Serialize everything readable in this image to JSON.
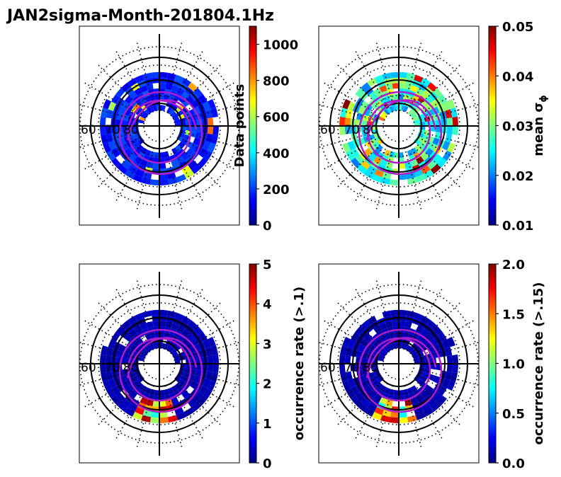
{
  "title": "JAN2sigma-Month-201804.1Hz",
  "colors": {
    "grid": "#000000",
    "oval": "#b01cc8",
    "jet": [
      "#00007f",
      "#0000ff",
      "#007fff",
      "#00ffff",
      "#7fff7f",
      "#ffff00",
      "#ff7f00",
      "#ff0000",
      "#7f0000"
    ]
  },
  "chart_data": [
    {
      "type": "heatmap",
      "projection": "polar",
      "panel": "top-left",
      "colorbar": {
        "label": "Data points",
        "label_side": "left",
        "vmin": 0,
        "vmax": 1100,
        "ticks": [
          "0",
          "200",
          "400",
          "600",
          "800",
          "1000"
        ],
        "tick_values": [
          0,
          200,
          400,
          600,
          800,
          1000
        ]
      },
      "lat_labels": [
        "60",
        "70",
        "80"
      ],
      "typical_value_fraction": 0.15
    },
    {
      "type": "heatmap",
      "projection": "polar",
      "panel": "top-right",
      "colorbar": {
        "label": "mean σ",
        "label_sub": "ϕ",
        "label_side": "right",
        "vmin": 0.01,
        "vmax": 0.05,
        "ticks": [
          "0.01",
          "0.02",
          "0.03",
          "0.04",
          "0.05"
        ],
        "tick_values": [
          0.01,
          0.02,
          0.03,
          0.04,
          0.05
        ]
      },
      "lat_labels": [
        "60",
        "70",
        "80"
      ],
      "typical_value_fraction": 0.4
    },
    {
      "type": "heatmap",
      "projection": "polar",
      "panel": "bottom-left",
      "colorbar": {
        "label": "occurrence rate (>.1)",
        "label_side": "right",
        "vmin": 0,
        "vmax": 5,
        "ticks": [
          "0",
          "1",
          "2",
          "3",
          "4",
          "5"
        ],
        "tick_values": [
          0,
          1,
          2,
          3,
          4,
          5
        ]
      },
      "lat_labels": [
        "60",
        "70",
        "80"
      ],
      "typical_value_fraction": 0.05
    },
    {
      "type": "heatmap",
      "projection": "polar",
      "panel": "bottom-right",
      "colorbar": {
        "label": "occurrence rate (>.15)",
        "label_side": "right",
        "vmin": 0.0,
        "vmax": 2.0,
        "ticks": [
          "0.0",
          "0.5",
          "1.0",
          "1.5",
          "2.0"
        ],
        "tick_values": [
          0.0,
          0.5,
          1.0,
          1.5,
          2.0
        ]
      },
      "lat_labels": [
        "60",
        "70",
        "80"
      ],
      "typical_value_fraction": 0.05
    }
  ]
}
